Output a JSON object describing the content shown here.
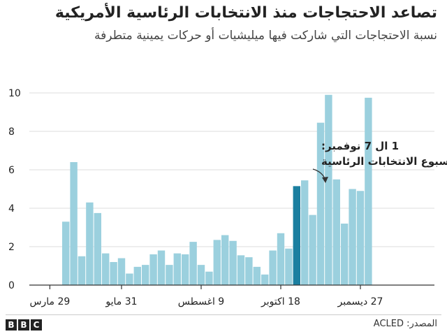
{
  "title": "تصاعد الاحتجاجات منذ الانتخابات الرئاسية الأمريكية",
  "subtitle": "نسبة الاحتجاجات التي شاركت فيها ميليشيات أو حركات يمينية متطرفة",
  "source": "المصدر: ACLED",
  "logo": [
    "B",
    "B",
    "C"
  ],
  "colors": {
    "bar": "#9bd0de",
    "highlight": "#1b7fa0",
    "grid": "#dddddd",
    "axis": "#333333",
    "text": "#222222"
  },
  "chart_data": {
    "type": "bar",
    "title": "تصاعد الاحتجاجات منذ الانتخابات الرئاسية الأمريكية",
    "ylim": [
      0,
      10
    ],
    "yticks": [
      "0",
      "2",
      "4",
      "6",
      "8",
      "10"
    ],
    "xtick_labels": [
      "29 مارس",
      "31 مايو",
      "9 اغسطس",
      "18 اكتوبر",
      "27 ديسمبر"
    ],
    "xtick_bar_index": [
      -2,
      7,
      17,
      27,
      37
    ],
    "values": [
      3.3,
      6.4,
      1.5,
      4.3,
      3.75,
      1.65,
      1.2,
      1.4,
      0.6,
      0.95,
      1.05,
      1.6,
      1.8,
      1.05,
      1.65,
      1.6,
      2.25,
      1.05,
      0.7,
      2.35,
      2.6,
      2.3,
      1.55,
      1.45,
      0.95,
      0.55,
      1.8,
      2.7,
      1.9,
      5.15,
      5.45,
      3.65,
      8.45,
      9.9,
      5.5,
      3.2,
      5.0,
      4.9,
      9.75
    ],
    "highlight_index": 29,
    "annotation": {
      "line1": "1 ال 7 نوفمبر:",
      "line2": "اسبوع الانتخابات الرئاسية"
    }
  }
}
